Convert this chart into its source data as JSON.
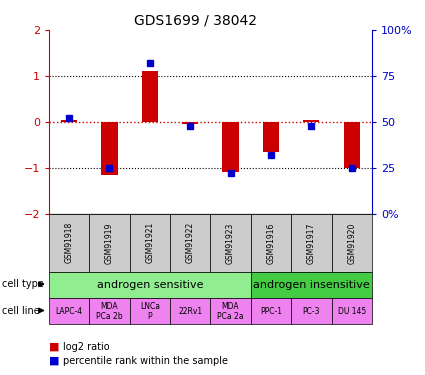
{
  "title": "GDS1699 / 38042",
  "samples": [
    "GSM91918",
    "GSM91919",
    "GSM91921",
    "GSM91922",
    "GSM91923",
    "GSM91916",
    "GSM91917",
    "GSM91920"
  ],
  "log2_ratio": [
    0.05,
    -1.15,
    1.1,
    -0.05,
    -1.1,
    -0.65,
    0.05,
    -1.0
  ],
  "percentile_rank_raw": [
    52,
    25,
    82,
    48,
    22,
    32,
    48,
    25
  ],
  "cell_type_groups": [
    {
      "label": "androgen sensitive",
      "start": 0,
      "end": 5,
      "color": "#90ee90"
    },
    {
      "label": "androgen insensitive",
      "start": 5,
      "end": 8,
      "color": "#44cc44"
    }
  ],
  "cell_lines": [
    "LAPC-4",
    "MDA\nPCa 2b",
    "LNCa\nP",
    "22Rv1",
    "MDA\nPCa 2a",
    "PPC-1",
    "PC-3",
    "DU 145"
  ],
  "cell_line_color": "#ee82ee",
  "gsm_label_bg": "#cccccc",
  "ylim_left": [
    -2,
    2
  ],
  "ylim_right": [
    0,
    100
  ],
  "yticks_left": [
    -2,
    -1,
    0,
    1,
    2
  ],
  "yticks_right": [
    0,
    25,
    50,
    75,
    100
  ],
  "left_tick_color": "#cc0000",
  "right_tick_color": "#0000cc",
  "bar_color": "#cc0000",
  "dot_color": "#0000cc",
  "bar_width": 0.4,
  "dot_size": 5
}
